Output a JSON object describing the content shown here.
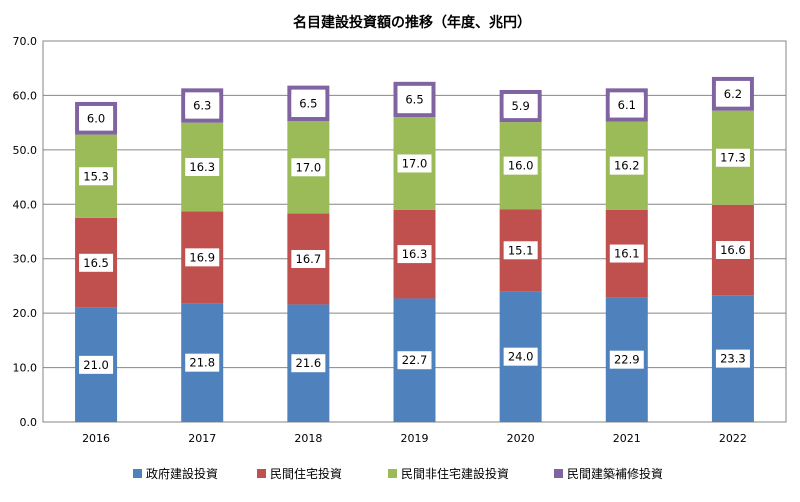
{
  "chart_data": {
    "type": "bar",
    "stacked": true,
    "title": "名目建設投資額の推移（年度、兆円）",
    "categories": [
      "2016",
      "2017",
      "2018",
      "2019",
      "2020",
      "2021",
      "2022"
    ],
    "series": [
      {
        "name": "政府建設投資",
        "color": "#4F81BD",
        "values": [
          21.0,
          21.8,
          21.6,
          22.7,
          24.0,
          22.9,
          23.3
        ]
      },
      {
        "name": "民間住宅投資",
        "color": "#C0504D",
        "values": [
          16.5,
          16.9,
          16.7,
          16.3,
          15.1,
          16.1,
          16.6
        ]
      },
      {
        "name": "民間非住宅建設投資",
        "color": "#9BBB59",
        "values": [
          15.3,
          16.3,
          17.0,
          17.0,
          16.0,
          16.2,
          17.3
        ]
      },
      {
        "name": "民間建築補修投資",
        "color": "#8064A2",
        "values": [
          6.0,
          6.3,
          6.5,
          6.5,
          5.9,
          6.1,
          6.2
        ]
      }
    ],
    "ylim": [
      0,
      70
    ],
    "yticks": [
      "0.0",
      "10.0",
      "20.0",
      "30.0",
      "40.0",
      "50.0",
      "60.0",
      "70.0"
    ],
    "xlabel": "",
    "ylabel": "",
    "grid": true,
    "legend_position": "bottom"
  }
}
